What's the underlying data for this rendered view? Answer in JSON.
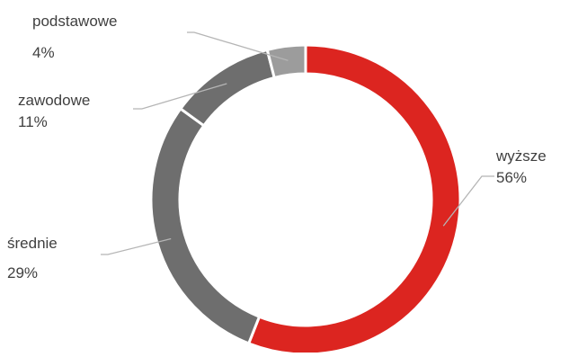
{
  "chart_data": {
    "type": "pie",
    "variant": "donut",
    "legend": "none",
    "start_angle_deg": 0,
    "direction": "clockwise",
    "slices": [
      {
        "category": "wyższe",
        "value": 56,
        "label": "56%",
        "color": "#dc2520"
      },
      {
        "category": "średnie",
        "value": 29,
        "label": "29%",
        "color": "#6e6e6e"
      },
      {
        "category": "zawodowe",
        "value": 11,
        "label": "11%",
        "color": "#6e6e6e"
      },
      {
        "category": "podstawowe",
        "value": 4,
        "label": "4%",
        "color": "#9c9c9c"
      }
    ]
  },
  "colors": {
    "leader_line": "#b5b5b5",
    "slice_border": "#ffffff",
    "label_text": "#404040"
  }
}
